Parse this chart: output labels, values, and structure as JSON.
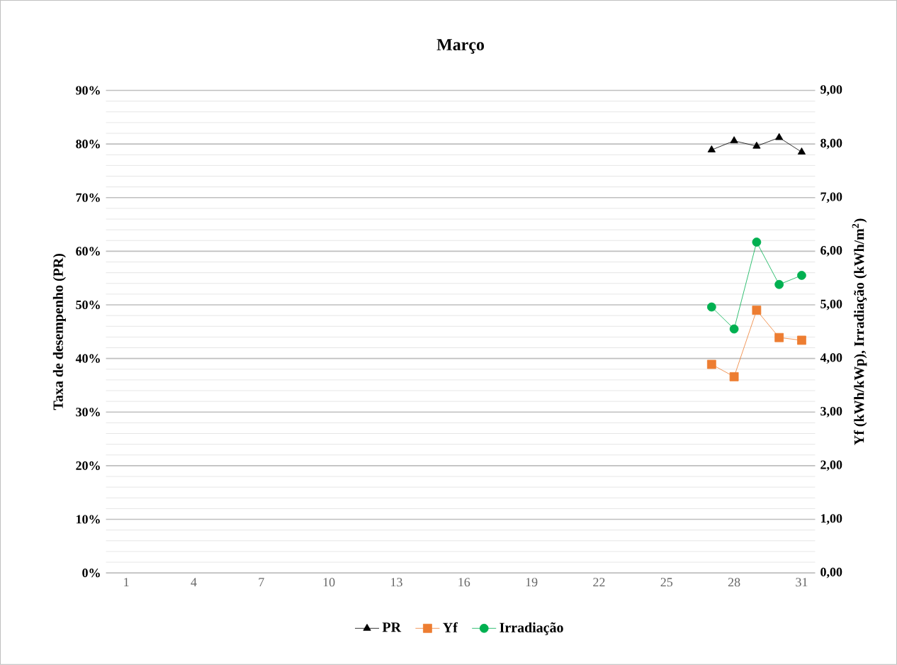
{
  "chart_data": {
    "type": "line",
    "title": "Março",
    "ylabel": "Taxa de desempenho (PR)",
    "y2label": "Yf (kWh/kWp), Irradiação (kWh/m$^{2}$)",
    "categories": [
      "1",
      null,
      null,
      "4",
      null,
      null,
      "7",
      null,
      null,
      "10",
      null,
      null,
      "13",
      null,
      null,
      "16",
      null,
      null,
      "19",
      null,
      null,
      "22",
      null,
      null,
      "25",
      null,
      null,
      "28",
      null,
      null,
      "31"
    ],
    "series": [
      {
        "name": "PR",
        "color": "#000000",
        "marker": "triangle",
        "values": [
          null,
          null,
          null,
          null,
          null,
          null,
          null,
          null,
          null,
          null,
          null,
          null,
          null,
          null,
          null,
          null,
          null,
          null,
          null,
          null,
          null,
          null,
          null,
          null,
          null,
          null,
          78.9,
          80.6,
          79.6,
          81.2,
          78.5
        ]
      },
      {
        "name": "Yf",
        "color": "#ed7d31",
        "marker": "square",
        "axis": "y2",
        "values": [
          null,
          null,
          null,
          null,
          null,
          null,
          null,
          null,
          null,
          null,
          null,
          null,
          null,
          null,
          null,
          null,
          null,
          null,
          null,
          null,
          null,
          null,
          null,
          null,
          null,
          null,
          3.89,
          3.66,
          4.9,
          4.39,
          4.34
        ]
      },
      {
        "name": "Irradiação",
        "color": "#00b050",
        "marker": "circle",
        "axis": "y2",
        "values": [
          null,
          null,
          null,
          null,
          null,
          null,
          null,
          null,
          null,
          null,
          null,
          null,
          null,
          null,
          null,
          null,
          null,
          null,
          null,
          null,
          null,
          null,
          null,
          null,
          null,
          null,
          4.96,
          4.55,
          6.17,
          5.38,
          5.55
        ]
      }
    ],
    "ylim": [
      0,
      90
    ],
    "yticks": [
      {
        "value": 0,
        "label": "0%"
      },
      {
        "value": 10,
        "label": "10%"
      },
      {
        "value": 20,
        "label": "20%"
      },
      {
        "value": 30,
        "label": "30%"
      },
      {
        "value": 40,
        "label": "40%"
      },
      {
        "value": 50,
        "label": "50%"
      },
      {
        "value": 60,
        "label": "60%"
      },
      {
        "value": 70,
        "label": "70%"
      },
      {
        "value": 80,
        "label": "80%"
      },
      {
        "value": 90,
        "label": "90%"
      }
    ],
    "y2lim": [
      0,
      9
    ],
    "y2ticks": [
      {
        "value": 0,
        "label": "0,00"
      },
      {
        "value": 1,
        "label": "1,00"
      },
      {
        "value": 2,
        "label": "2,00"
      },
      {
        "value": 3,
        "label": "3,00"
      },
      {
        "value": 4,
        "label": "4,00"
      },
      {
        "value": 5,
        "label": "5,00"
      },
      {
        "value": 6,
        "label": "6,00"
      },
      {
        "value": 7,
        "label": "7,00"
      },
      {
        "value": 8,
        "label": "8,00"
      },
      {
        "value": 9,
        "label": "9,00"
      }
    ],
    "grid": "y",
    "legend": "bottom",
    "line_style": "solid"
  }
}
